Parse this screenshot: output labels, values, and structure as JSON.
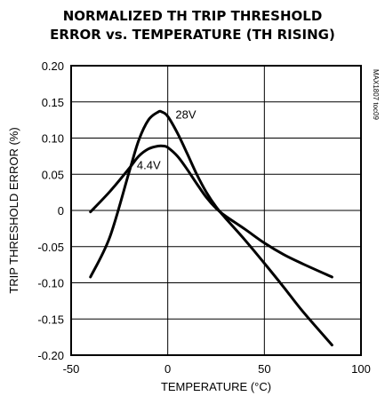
{
  "chart_data": {
    "type": "line",
    "title": "NORMALIZED TH TRIP THRESHOLD",
    "subtitle": "ERROR vs. TEMPERATURE (TH RISING)",
    "xlabel": "TEMPERATURE (°C)",
    "ylabel": "TRIP THRESHOLD ERROR (%)",
    "xlim": [
      -50,
      100
    ],
    "ylim": [
      -0.2,
      0.2
    ],
    "xticks": [
      "-50",
      "0",
      "50",
      "100"
    ],
    "yticks": [
      "0.20",
      "0.15",
      "0.10",
      "0.05",
      "0",
      "-0.05",
      "-0.10",
      "-0.15",
      "-0.20"
    ],
    "grid": true,
    "watermark": "MAX1807 toc09",
    "series": [
      {
        "name": "28V",
        "x": [
          -40,
          -30,
          -20,
          -15,
          -10,
          -5,
          -3,
          0,
          5,
          10,
          15,
          20,
          25,
          30,
          40,
          50,
          60,
          70,
          85
        ],
        "y": [
          -0.092,
          -0.037,
          0.053,
          0.097,
          0.125,
          0.136,
          0.136,
          0.13,
          0.107,
          0.079,
          0.05,
          0.025,
          0.005,
          -0.011,
          -0.041,
          -0.073,
          -0.106,
          -0.14,
          -0.186
        ]
      },
      {
        "name": "4.4V",
        "x": [
          -40,
          -30,
          -20,
          -15,
          -10,
          -5,
          -2,
          0,
          5,
          10,
          15,
          20,
          25,
          30,
          40,
          50,
          60,
          70,
          85
        ],
        "y": [
          -0.002,
          0.026,
          0.058,
          0.075,
          0.085,
          0.089,
          0.089,
          0.087,
          0.075,
          0.057,
          0.037,
          0.018,
          0.003,
          -0.008,
          -0.026,
          -0.045,
          -0.061,
          -0.074,
          -0.092
        ]
      }
    ]
  }
}
